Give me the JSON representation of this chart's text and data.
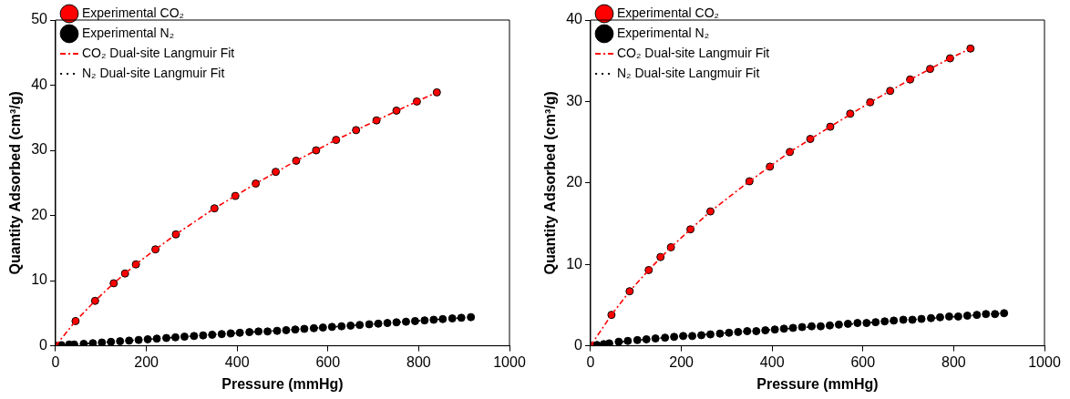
{
  "chart_data": [
    {
      "type": "scatter",
      "xlabel": "Pressure (mmHg)",
      "ylabel": "Quantity Adsorbed (cm³/g)",
      "xlim": [
        0,
        1000
      ],
      "xticks": [
        0,
        200,
        400,
        600,
        800,
        1000
      ],
      "ylim": [
        0,
        50
      ],
      "yticks": [
        0,
        10,
        20,
        30,
        40,
        50
      ],
      "grid": false,
      "legend": "top left",
      "marker": "circle",
      "series": [
        {
          "name": "Experimental CO₂",
          "color": "#ff0000",
          "x": [
            0,
            44,
            87,
            128,
            153,
            177,
            220,
            265,
            350,
            396,
            441,
            485,
            530,
            574,
            618,
            662,
            707,
            751,
            796,
            840
          ],
          "values": [
            0,
            3.8,
            6.9,
            9.6,
            11.1,
            12.5,
            14.8,
            17.1,
            21.1,
            23.0,
            24.9,
            26.7,
            28.4,
            30.0,
            31.6,
            33.1,
            34.6,
            36.1,
            37.5,
            38.9
          ]
        },
        {
          "name": "Experimental N₂",
          "color": "#000000",
          "x": [
            13,
            30,
            41,
            62,
            82,
            102,
            122,
            142,
            162,
            183,
            203,
            223,
            244,
            264,
            284,
            305,
            325,
            345,
            366,
            386,
            406,
            427,
            447,
            467,
            488,
            508,
            528,
            548,
            569,
            589,
            609,
            630,
            650,
            670,
            691,
            711,
            731,
            751,
            772,
            792,
            813,
            833,
            853,
            874,
            894,
            915
          ],
          "values": [
            0.1,
            0.2,
            0.2,
            0.3,
            0.4,
            0.5,
            0.6,
            0.7,
            0.8,
            0.9,
            1.0,
            1.1,
            1.2,
            1.3,
            1.4,
            1.5,
            1.6,
            1.7,
            1.8,
            1.9,
            2.0,
            2.1,
            2.2,
            2.2,
            2.3,
            2.4,
            2.5,
            2.6,
            2.7,
            2.8,
            2.9,
            3.0,
            3.1,
            3.2,
            3.3,
            3.4,
            3.5,
            3.6,
            3.7,
            3.8,
            3.9,
            4.0,
            4.1,
            4.2,
            4.3,
            4.4
          ]
        },
        {
          "name": "CO₂ Dual-site Langmuir Fit",
          "type": "line",
          "line_style": "dashed",
          "marker": "none",
          "color": "#ff0000",
          "x": [
            0,
            44,
            87,
            128,
            177,
            220,
            265,
            350,
            441,
            530,
            618,
            707,
            796,
            840
          ],
          "values": [
            0,
            3.8,
            6.9,
            9.6,
            12.5,
            14.8,
            17.1,
            21.1,
            24.9,
            28.4,
            31.6,
            34.6,
            37.5,
            38.9
          ]
        },
        {
          "name": "N₂ Dual-site Langmuir Fit",
          "type": "line",
          "line_style": "dotted",
          "marker": "none",
          "color": "#000000",
          "x": [
            0,
            102,
            203,
            305,
            406,
            508,
            609,
            711,
            813,
            915
          ],
          "values": [
            0,
            0.5,
            1.0,
            1.5,
            2.0,
            2.4,
            2.9,
            3.4,
            3.9,
            4.4
          ]
        }
      ]
    },
    {
      "type": "scatter",
      "xlabel": "Pressure (mmHg)",
      "ylabel": "Quantity Adsorbed (cm³/g)",
      "xlim": [
        0,
        1000
      ],
      "xticks": [
        0,
        200,
        400,
        600,
        800,
        1000
      ],
      "ylim": [
        0,
        40
      ],
      "yticks": [
        0,
        10,
        20,
        30,
        40
      ],
      "grid": false,
      "legend": "top left",
      "marker": "circle",
      "series": [
        {
          "name": "Experimental CO₂",
          "color": "#ff0000",
          "x": [
            0,
            46,
            86,
            128,
            154,
            177,
            220,
            264,
            350,
            395,
            439,
            484,
            528,
            572,
            616,
            660,
            704,
            748,
            792,
            837
          ],
          "values": [
            0,
            3.8,
            6.7,
            9.3,
            10.9,
            12.1,
            14.3,
            16.5,
            20.2,
            22.0,
            23.8,
            25.4,
            26.9,
            28.5,
            29.9,
            31.3,
            32.7,
            34.0,
            35.3,
            36.5
          ]
        },
        {
          "name": "Experimental N₂",
          "color": "#000000",
          "x": [
            14,
            29,
            41,
            62,
            82,
            103,
            123,
            143,
            164,
            184,
            204,
            224,
            244,
            264,
            285,
            305,
            325,
            345,
            365,
            385,
            406,
            426,
            446,
            466,
            487,
            507,
            527,
            547,
            567,
            588,
            608,
            628,
            648,
            668,
            689,
            709,
            729,
            750,
            770,
            790,
            810,
            830,
            851,
            871,
            891,
            911
          ],
          "values": [
            0.1,
            0.2,
            0.3,
            0.5,
            0.6,
            0.7,
            0.8,
            0.9,
            1.0,
            1.1,
            1.2,
            1.2,
            1.3,
            1.4,
            1.5,
            1.6,
            1.7,
            1.8,
            1.8,
            1.9,
            2.0,
            2.1,
            2.2,
            2.3,
            2.4,
            2.4,
            2.5,
            2.6,
            2.7,
            2.8,
            2.8,
            2.9,
            3.0,
            3.1,
            3.2,
            3.2,
            3.3,
            3.4,
            3.5,
            3.6,
            3.6,
            3.7,
            3.8,
            3.9,
            3.9,
            4.0
          ]
        },
        {
          "name": "CO₂ Dual-site Langmuir Fit",
          "type": "line",
          "line_style": "dashed",
          "marker": "none",
          "color": "#ff0000",
          "x": [
            0,
            46,
            86,
            128,
            177,
            220,
            264,
            350,
            439,
            528,
            616,
            704,
            792,
            837
          ],
          "values": [
            0,
            3.8,
            6.7,
            9.3,
            12.1,
            14.3,
            16.5,
            20.2,
            23.8,
            26.9,
            29.9,
            32.7,
            35.3,
            36.5
          ]
        },
        {
          "name": "N₂ Dual-site Langmuir Fit",
          "type": "line",
          "line_style": "dotted",
          "marker": "none",
          "color": "#000000",
          "x": [
            0,
            103,
            204,
            305,
            406,
            507,
            608,
            709,
            810,
            911
          ],
          "values": [
            0,
            0.7,
            1.2,
            1.6,
            2.0,
            2.4,
            2.8,
            3.2,
            3.6,
            4.0
          ]
        }
      ]
    }
  ]
}
